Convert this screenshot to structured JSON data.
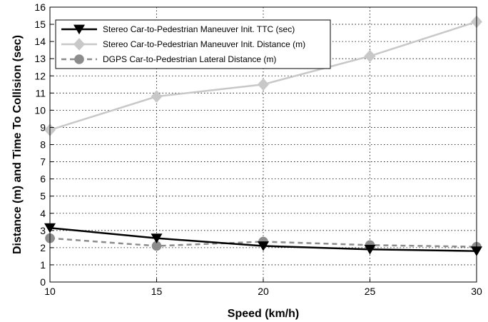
{
  "chart_data": {
    "type": "line",
    "title": "",
    "xlabel": "Speed (km/h)",
    "ylabel": "Distance (m) and Time To Collision (sec)",
    "xlim": [
      10,
      30
    ],
    "ylim": [
      0,
      16
    ],
    "xticks": [
      10,
      15,
      20,
      25,
      30
    ],
    "yticks": [
      0,
      1,
      2,
      3,
      4,
      5,
      6,
      7,
      8,
      9,
      10,
      11,
      12,
      13,
      14,
      15,
      16
    ],
    "grid": true,
    "legend_position": "top-left",
    "x": [
      10,
      15,
      20,
      25,
      30
    ],
    "series": [
      {
        "name": "Stereo Car-to-Pedestrian Maneuver Init. TTC (sec)",
        "values": [
          3.15,
          2.55,
          2.1,
          1.9,
          1.8
        ],
        "color": "#000000",
        "marker": "triangle-down",
        "line": "solid"
      },
      {
        "name": "Stereo Car-to-Pedestrian Maneuver Init. Distance (m)",
        "values": [
          8.85,
          10.8,
          11.5,
          13.15,
          15.15
        ],
        "color": "#c8c8c8",
        "marker": "diamond",
        "line": "solid"
      },
      {
        "name": "DGPS Car-to-Pedestrian Lateral Distance (m)",
        "values": [
          2.55,
          2.1,
          2.35,
          2.15,
          2.05
        ],
        "color": "#8c8c8c",
        "marker": "circle",
        "line": "dashed"
      }
    ]
  }
}
